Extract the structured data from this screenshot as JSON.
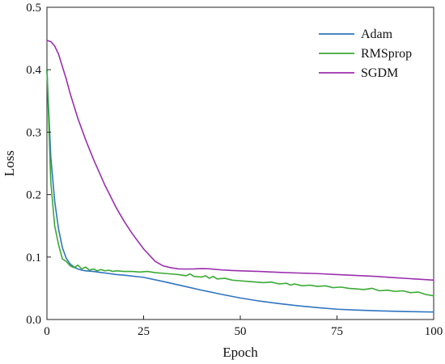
{
  "chart_data": {
    "type": "line",
    "xlabel": "Epoch",
    "ylabel": "Loss",
    "xlim": [
      0,
      100
    ],
    "ylim": [
      0,
      0.5
    ],
    "xticks": [
      0,
      25,
      50,
      75,
      100
    ],
    "yticks": [
      0.0,
      0.1,
      0.2,
      0.3,
      0.4,
      0.5
    ],
    "xtick_labels": [
      "0",
      "25",
      "50",
      "75",
      "100"
    ],
    "ytick_labels": [
      "0.0",
      "0.1",
      "0.2",
      "0.3",
      "0.4",
      "0.5"
    ],
    "grid": false,
    "legend_position": "top-right",
    "series": [
      {
        "name": "Adam",
        "color": "#2f74c0",
        "points": [
          [
            0,
            0.4
          ],
          [
            1,
            0.26
          ],
          [
            2,
            0.19
          ],
          [
            3,
            0.145
          ],
          [
            4,
            0.115
          ],
          [
            5,
            0.098
          ],
          [
            6,
            0.089
          ],
          [
            7,
            0.084
          ],
          [
            8,
            0.081
          ],
          [
            9,
            0.079
          ],
          [
            10,
            0.078
          ],
          [
            12,
            0.077
          ],
          [
            15,
            0.0745
          ],
          [
            18,
            0.072
          ],
          [
            20,
            0.071
          ],
          [
            25,
            0.0675
          ],
          [
            30,
            0.061
          ],
          [
            35,
            0.054
          ],
          [
            40,
            0.047
          ],
          [
            45,
            0.0405
          ],
          [
            50,
            0.0345
          ],
          [
            55,
            0.0295
          ],
          [
            60,
            0.0255
          ],
          [
            65,
            0.022
          ],
          [
            70,
            0.019
          ],
          [
            75,
            0.0165
          ],
          [
            80,
            0.0152
          ],
          [
            85,
            0.014
          ],
          [
            90,
            0.0132
          ],
          [
            95,
            0.0125
          ],
          [
            100,
            0.012
          ]
        ]
      },
      {
        "name": "RMSprop",
        "color": "#3aaa35",
        "points": [
          [
            0,
            0.4
          ],
          [
            1,
            0.22
          ],
          [
            2,
            0.15
          ],
          [
            3,
            0.12
          ],
          [
            4,
            0.097
          ],
          [
            5,
            0.093
          ],
          [
            6,
            0.086
          ],
          [
            7,
            0.083
          ],
          [
            8,
            0.087
          ],
          [
            9,
            0.081
          ],
          [
            10,
            0.084
          ],
          [
            11,
            0.079
          ],
          [
            12,
            0.081
          ],
          [
            13,
            0.078
          ],
          [
            14,
            0.08
          ],
          [
            15,
            0.078
          ],
          [
            16,
            0.079
          ],
          [
            17,
            0.077
          ],
          [
            18,
            0.078
          ],
          [
            20,
            0.077
          ],
          [
            22,
            0.077
          ],
          [
            24,
            0.076
          ],
          [
            26,
            0.077
          ],
          [
            28,
            0.075
          ],
          [
            30,
            0.074
          ],
          [
            32,
            0.073
          ],
          [
            34,
            0.072
          ],
          [
            36,
            0.07
          ],
          [
            37,
            0.073
          ],
          [
            38,
            0.069
          ],
          [
            40,
            0.068
          ],
          [
            41,
            0.07
          ],
          [
            42,
            0.066
          ],
          [
            43,
            0.069
          ],
          [
            44,
            0.065
          ],
          [
            46,
            0.066
          ],
          [
            48,
            0.063
          ],
          [
            50,
            0.062
          ],
          [
            52,
            0.061
          ],
          [
            54,
            0.06
          ],
          [
            56,
            0.059
          ],
          [
            58,
            0.06
          ],
          [
            60,
            0.057
          ],
          [
            62,
            0.058
          ],
          [
            63,
            0.055
          ],
          [
            64,
            0.057
          ],
          [
            66,
            0.054
          ],
          [
            68,
            0.055
          ],
          [
            70,
            0.053
          ],
          [
            72,
            0.054
          ],
          [
            74,
            0.051
          ],
          [
            76,
            0.052
          ],
          [
            78,
            0.05
          ],
          [
            80,
            0.049
          ],
          [
            82,
            0.048
          ],
          [
            84,
            0.05
          ],
          [
            86,
            0.046
          ],
          [
            88,
            0.047
          ],
          [
            90,
            0.045
          ],
          [
            92,
            0.046
          ],
          [
            94,
            0.043
          ],
          [
            96,
            0.044
          ],
          [
            98,
            0.04
          ],
          [
            100,
            0.038
          ]
        ]
      },
      {
        "name": "SGDM",
        "color": "#9b2fae",
        "points": [
          [
            0,
            0.447
          ],
          [
            1,
            0.445
          ],
          [
            2,
            0.438
          ],
          [
            3,
            0.425
          ],
          [
            4,
            0.405
          ],
          [
            5,
            0.385
          ],
          [
            6,
            0.362
          ],
          [
            7,
            0.342
          ],
          [
            8,
            0.322
          ],
          [
            10,
            0.288
          ],
          [
            12,
            0.257
          ],
          [
            15,
            0.215
          ],
          [
            18,
            0.178
          ],
          [
            20,
            0.157
          ],
          [
            22,
            0.138
          ],
          [
            25,
            0.113
          ],
          [
            28,
            0.093
          ],
          [
            30,
            0.086
          ],
          [
            32,
            0.083
          ],
          [
            34,
            0.081
          ],
          [
            36,
            0.0808
          ],
          [
            38,
            0.081
          ],
          [
            40,
            0.0815
          ],
          [
            42,
            0.0812
          ],
          [
            45,
            0.0795
          ],
          [
            48,
            0.0785
          ],
          [
            50,
            0.078
          ],
          [
            55,
            0.077
          ],
          [
            60,
            0.0755
          ],
          [
            65,
            0.0745
          ],
          [
            70,
            0.0735
          ],
          [
            75,
            0.072
          ],
          [
            80,
            0.0705
          ],
          [
            85,
            0.069
          ],
          [
            90,
            0.067
          ],
          [
            95,
            0.065
          ],
          [
            100,
            0.063
          ]
        ]
      }
    ]
  }
}
